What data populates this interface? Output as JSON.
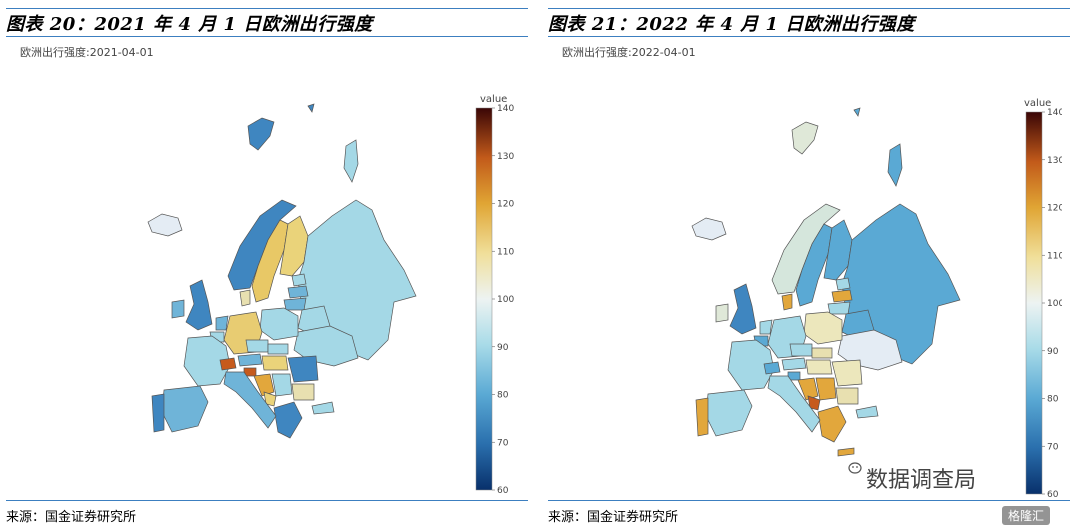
{
  "panels": [
    {
      "title": "图表 20：2021 年 4 月 1 日欧洲出行强度",
      "subtitle": "欧洲出行强度:2021-04-01",
      "source": "来源：国金证券研究所"
    },
    {
      "title": "图表 21：2022 年 4 月 1 日欧洲出行强度",
      "subtitle": "欧洲出行强度:2022-04-01",
      "source": "来源：国金证券研究所"
    }
  ],
  "colorbar": {
    "title": "value",
    "ticks": [
      "140",
      "130",
      "120",
      "110",
      "100",
      "90",
      "80",
      "70",
      "60"
    ],
    "range": [
      60,
      140
    ],
    "stops": [
      "#08306b",
      "#2a6fad",
      "#5aa9d4",
      "#a8dbe8",
      "#edf3f2",
      "#f0df9a",
      "#e0a534",
      "#c25a1a",
      "#7a1408",
      "#3a0606"
    ]
  },
  "chart_data": [
    {
      "type": "heatmap",
      "title": "欧洲出行强度:2021-04-01",
      "colorbar_range": [
        60,
        140
      ]
    },
    {
      "type": "heatmap",
      "title": "欧洲出行强度:2022-04-01",
      "colorbar_range": [
        60,
        140
      ]
    }
  ],
  "watermark": {
    "text": "数据调查局"
  },
  "logo": {
    "text": "格隆汇"
  }
}
